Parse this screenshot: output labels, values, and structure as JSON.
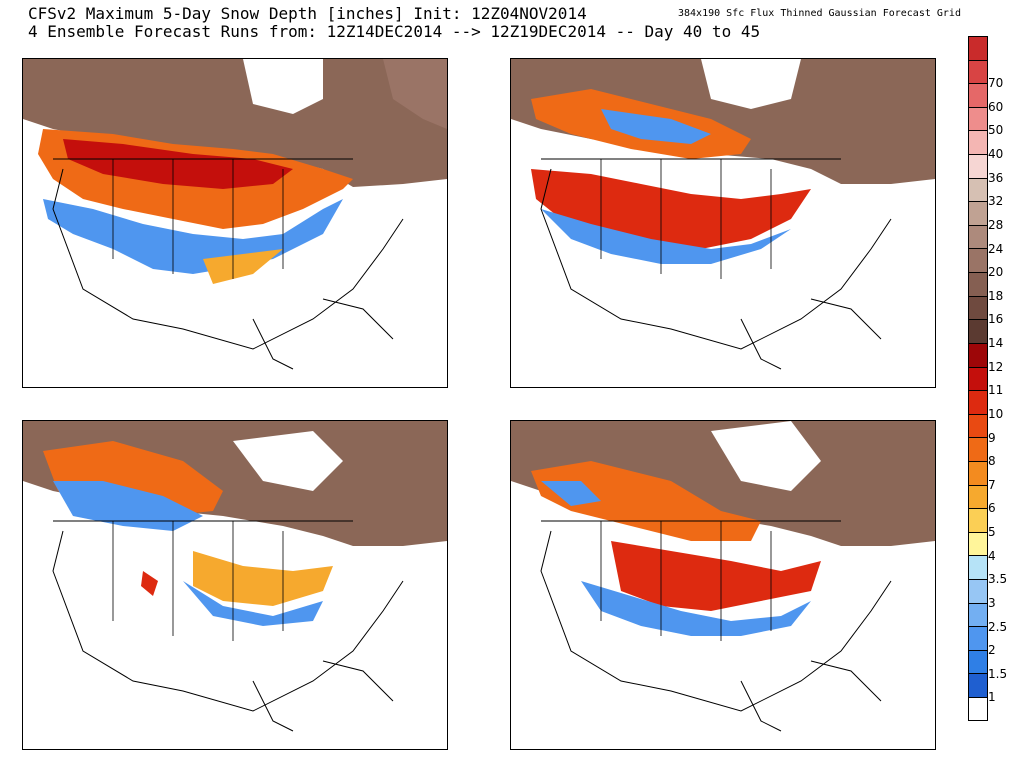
{
  "header": {
    "title_line1": "CFSv2 Maximum 5-Day Snow Depth [inches] Init: 12Z04NOV2014",
    "title_line2": "4 Ensemble Forecast Runs from: 12Z14DEC2014 --> 12Z19DEC2014 -- Day 40 to 45",
    "grid_note": "384x190 Sfc Flux Thinned Gaussian Forecast Grid"
  },
  "panels": [
    {
      "id": "run-1"
    },
    {
      "id": "run-2"
    },
    {
      "id": "run-3"
    },
    {
      "id": "run-4"
    }
  ],
  "legend": {
    "levels": [
      {
        "label": "",
        "color": "#ffffff"
      },
      {
        "label": "1",
        "color": "#1f5fd0"
      },
      {
        "label": "1.5",
        "color": "#2f7fe6"
      },
      {
        "label": "2",
        "color": "#4f96ef"
      },
      {
        "label": "2.5",
        "color": "#73aff2"
      },
      {
        "label": "3",
        "color": "#97c6f4"
      },
      {
        "label": "3.5",
        "color": "#b6e3f7"
      },
      {
        "label": "4",
        "color": "#fff59a"
      },
      {
        "label": "5",
        "color": "#fbcf55"
      },
      {
        "label": "6",
        "color": "#f6a92e"
      },
      {
        "label": "7",
        "color": "#f38b1f"
      },
      {
        "label": "8",
        "color": "#ef6a16"
      },
      {
        "label": "9",
        "color": "#e94a12"
      },
      {
        "label": "10",
        "color": "#dd2a10"
      },
      {
        "label": "11",
        "color": "#c40f0c"
      },
      {
        "label": "12",
        "color": "#9d0608"
      },
      {
        "label": "14",
        "color": "#5b3a31"
      },
      {
        "label": "16",
        "color": "#6f4a3f"
      },
      {
        "label": "18",
        "color": "#855f52"
      },
      {
        "label": "20",
        "color": "#9a7466"
      },
      {
        "label": "24",
        "color": "#ad8a7c"
      },
      {
        "label": "28",
        "color": "#c0a293"
      },
      {
        "label": "32",
        "color": "#d6c0b3"
      },
      {
        "label": "36",
        "color": "#f6d6d3"
      },
      {
        "label": "40",
        "color": "#f4b6b3"
      },
      {
        "label": "50",
        "color": "#ee8d8c"
      },
      {
        "label": "60",
        "color": "#e56868"
      },
      {
        "label": "70",
        "color": "#d84444"
      },
      {
        "label": "",
        "color": "#c92b2b"
      }
    ]
  }
}
